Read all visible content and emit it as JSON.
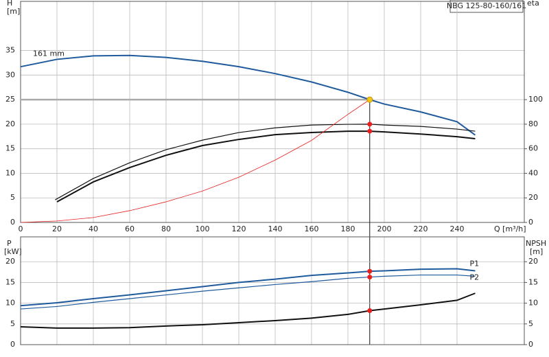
{
  "chart_data": [
    {
      "type": "line",
      "title": "NBG 125-80-160/161",
      "y_label": "H",
      "y_unit": "[m]",
      "y2_label": "eta",
      "x_label": "Q [m³/h]",
      "xlim": [
        0,
        277
      ],
      "xticks": [
        0,
        20,
        40,
        60,
        80,
        100,
        120,
        140,
        160,
        180,
        200,
        220,
        240
      ],
      "ylim": [
        0,
        45
      ],
      "yticks": [
        0,
        5,
        10,
        15,
        20,
        25,
        30,
        35
      ],
      "y2lim": [
        0,
        180
      ],
      "y2ticks": [
        0,
        20,
        40,
        60,
        80,
        100
      ],
      "grid": true,
      "series": [
        {
          "name": "161 mm",
          "color": "#1f5a9c",
          "x": [
            0,
            20,
            40,
            60,
            80,
            100,
            120,
            140,
            160,
            180,
            192,
            200,
            220,
            240,
            250
          ],
          "values": [
            31.7,
            33.2,
            33.9,
            34.0,
            33.6,
            32.8,
            31.7,
            30.3,
            28.6,
            26.5,
            25.0,
            24.1,
            22.5,
            20.5,
            17.8
          ]
        },
        {
          "color": "#111111",
          "axis": "y2",
          "x": [
            19,
            40,
            60,
            80,
            100,
            120,
            140,
            160,
            180,
            192,
            200,
            220,
            240,
            250
          ],
          "values": [
            18.4,
            35.8,
            48.6,
            59.2,
            67.0,
            73.2,
            77.0,
            79.3,
            79.9,
            80.0,
            79.3,
            78.2,
            76.0,
            74.3
          ]
        },
        {
          "color": "#111111",
          "axis": "y2",
          "x": [
            20,
            40,
            60,
            80,
            100,
            120,
            140,
            160,
            180,
            192,
            200,
            220,
            240,
            250
          ],
          "values": [
            16.8,
            33.0,
            44.7,
            54.7,
            62.6,
            67.6,
            71.5,
            73.2,
            74.3,
            74.3,
            73.7,
            72.0,
            69.8,
            68.2
          ]
        },
        {
          "color": "#e8201e",
          "x": [
            0,
            20,
            40,
            60,
            80,
            100,
            120,
            140,
            160,
            180,
            192
          ],
          "values": [
            0,
            0.3,
            1.0,
            2.4,
            4.2,
            6.4,
            9.2,
            12.7,
            16.7,
            22.0,
            25.0
          ]
        }
      ],
      "duty_point": {
        "x": 192,
        "y": 25
      },
      "markers": [
        {
          "x": 192,
          "y": 80.0,
          "axis": "y2"
        },
        {
          "x": 192,
          "y": 74.3,
          "axis": "y2"
        }
      ]
    },
    {
      "type": "line",
      "y_label": "P",
      "y_unit": "[kW]",
      "y2_label": "NPSH",
      "y2_unit": "[m]",
      "xlim": [
        0,
        277
      ],
      "ylim": [
        0,
        26
      ],
      "yticks": [
        0,
        5,
        10,
        15,
        20
      ],
      "y2lim": [
        0,
        26
      ],
      "y2ticks": [
        0,
        5,
        10,
        15,
        20
      ],
      "grid": true,
      "series": [
        {
          "name": "P1",
          "color": "#1f5a9c",
          "x": [
            0,
            20,
            40,
            60,
            80,
            100,
            120,
            140,
            160,
            180,
            192,
            200,
            220,
            240,
            250
          ],
          "values": [
            9.4,
            10.1,
            11.1,
            12.0,
            13.0,
            14.0,
            15.0,
            15.8,
            16.7,
            17.3,
            17.7,
            17.8,
            18.2,
            18.3,
            17.8
          ]
        },
        {
          "name": "P2",
          "color": "#1f5a9c",
          "x": [
            0,
            20,
            40,
            60,
            80,
            100,
            120,
            140,
            160,
            180,
            192,
            200,
            220,
            240,
            250
          ],
          "values": [
            8.6,
            9.2,
            10.2,
            11.1,
            12.0,
            12.9,
            13.7,
            14.5,
            15.2,
            16.0,
            16.3,
            16.5,
            16.8,
            16.8,
            16.5
          ]
        },
        {
          "color": "#111111",
          "axis": "y2",
          "x": [
            0,
            20,
            40,
            60,
            80,
            100,
            120,
            140,
            160,
            180,
            192,
            200,
            220,
            240,
            250
          ],
          "values": [
            4.3,
            4.0,
            4.0,
            4.1,
            4.5,
            4.8,
            5.3,
            5.8,
            6.4,
            7.3,
            8.2,
            8.6,
            9.6,
            10.7,
            12.4
          ]
        }
      ],
      "markers": [
        {
          "x": 192,
          "y": 17.7
        },
        {
          "x": 192,
          "y": 16.3
        },
        {
          "x": 192,
          "y": 8.2,
          "axis": "y2"
        }
      ]
    }
  ]
}
